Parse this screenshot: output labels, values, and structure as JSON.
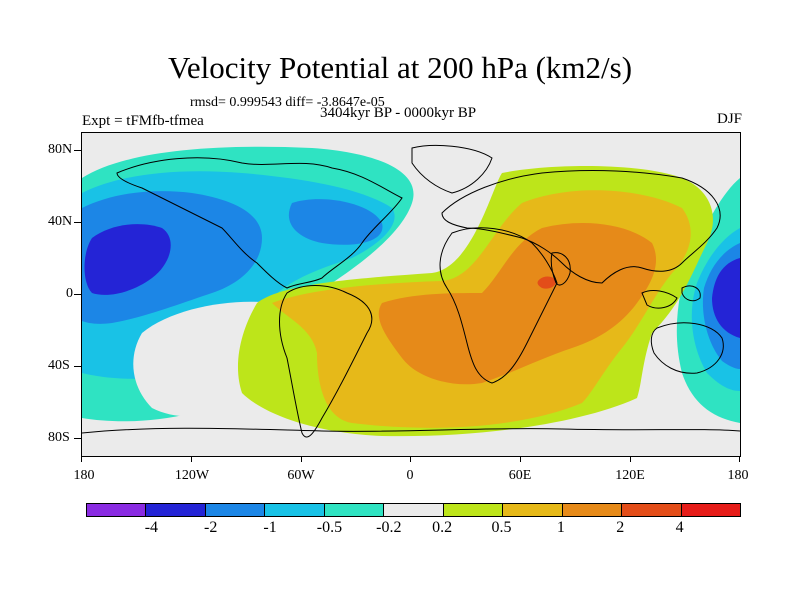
{
  "title": "Velocity Potential at 200 hPa (km2/s)",
  "stats": "rmsd= 0.999543 diff= -3.8647e-05",
  "experiment": "Expt = tFMfb-tfmea",
  "period": "3404kyr BP - 0000kyr BP",
  "season": "DJF",
  "lat_labels": [
    "80N",
    "40N",
    "0",
    "40S",
    "80S"
  ],
  "lon_labels": [
    "180",
    "120W",
    "60W",
    "0",
    "60E",
    "120E",
    "180"
  ],
  "colorbar": {
    "colors": [
      "#8a2be2",
      "#2424d6",
      "#1c86e6",
      "#19c2e6",
      "#2fe3c2",
      "#ebebeb",
      "#bde51a",
      "#e6b919",
      "#e68a19",
      "#e34d19",
      "#e61c19"
    ],
    "labels": [
      "-4",
      "-2",
      "-1",
      "-0.5",
      "-0.2",
      "0.2",
      "0.5",
      "1",
      "2",
      "4"
    ]
  }
}
